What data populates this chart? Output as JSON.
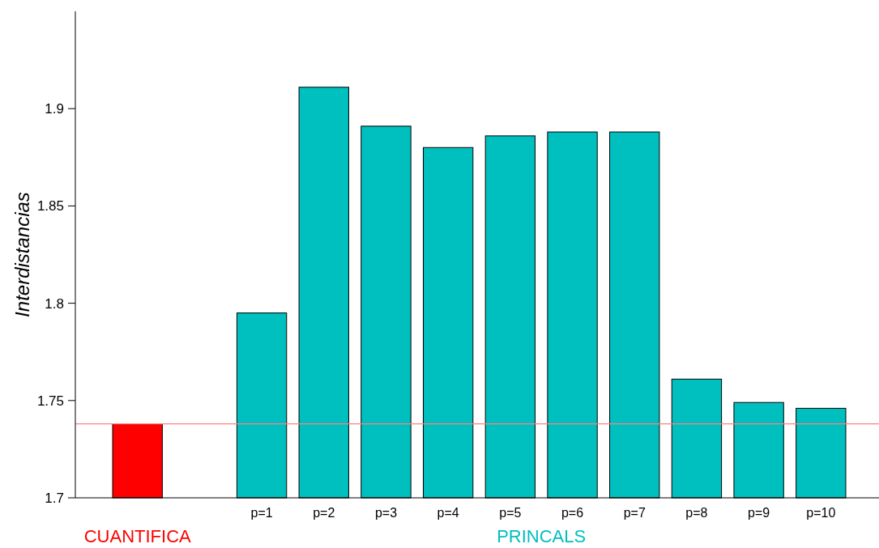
{
  "chart_data": {
    "type": "bar",
    "ylabel": "Interdistancias",
    "categories": [
      null,
      null,
      "p=1",
      "p=2",
      "p=3",
      "p=4",
      "p=5",
      "p=6",
      "p=7",
      "p=8",
      "p=9",
      "p=10"
    ],
    "series": [
      {
        "name": "CUANTIFICA",
        "color": "#ff0000",
        "values": [
          1.738,
          null,
          null,
          null,
          null,
          null,
          null,
          null,
          null,
          null,
          null,
          null
        ]
      },
      {
        "name": "PRINCALS",
        "color": "#00bfbf",
        "values": [
          null,
          null,
          1.795,
          1.911,
          1.891,
          1.88,
          1.886,
          1.888,
          1.888,
          1.761,
          1.749,
          1.746
        ]
      }
    ],
    "ylim": [
      1.7,
      1.95
    ],
    "yticks": [
      1.7,
      1.75,
      1.8,
      1.85,
      1.9
    ],
    "ref_lines": [
      {
        "axis": "y",
        "value": 1.738,
        "color": "#ff8080"
      }
    ],
    "grid": false
  }
}
